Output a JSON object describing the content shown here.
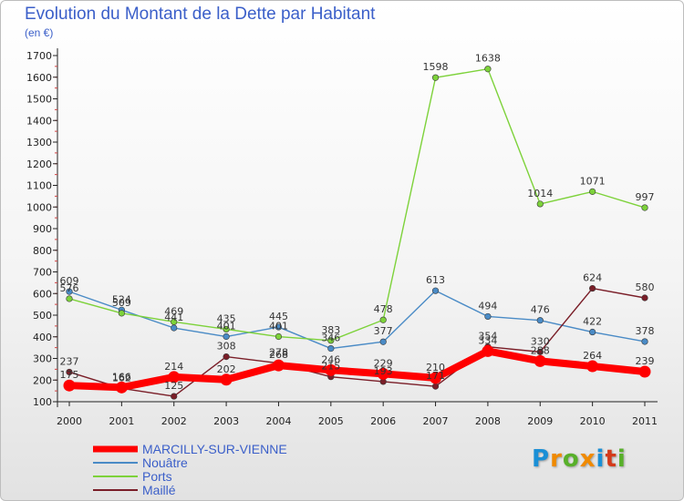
{
  "chart_data": {
    "type": "line",
    "title": "Evolution du Montant de la Dette par Habitant",
    "subtitle": "(en €)",
    "xlabel": "",
    "ylabel": "",
    "categories": [
      "2000",
      "2001",
      "2002",
      "2003",
      "2004",
      "2005",
      "2006",
      "2007",
      "2008",
      "2009",
      "2010",
      "2011"
    ],
    "ylim": [
      100,
      1700
    ],
    "yticks": [
      100,
      200,
      300,
      400,
      500,
      600,
      700,
      800,
      900,
      1000,
      1100,
      1200,
      1300,
      1400,
      1500,
      1600,
      1700
    ],
    "grid": false,
    "legend_position": "bottom-left",
    "series": [
      {
        "name": "MARCILLY-SUR-VIENNE",
        "color": "#ff0000",
        "values": [
          175,
          166,
          214,
          202,
          268,
          246,
          229,
          210,
          334,
          288,
          264,
          239
        ]
      },
      {
        "name": "Nouâtre",
        "color": "#4a8bc6",
        "values": [
          609,
          524,
          441,
          401,
          445,
          346,
          377,
          613,
          494,
          476,
          422,
          378
        ]
      },
      {
        "name": "Ports",
        "color": "#7dd23a",
        "values": [
          576,
          509,
          469,
          435,
          401,
          383,
          478,
          1598,
          1638,
          1014,
          1071,
          997
        ]
      },
      {
        "name": "Maillé",
        "color": "#7a1e28",
        "values": [
          237,
          162,
          125,
          308,
          278,
          215,
          193,
          171,
          354,
          330,
          624,
          580
        ]
      }
    ]
  },
  "brand": {
    "letters": [
      "P",
      "r",
      "o",
      "x",
      "i",
      "t",
      "i"
    ],
    "colors": [
      "#1a8fd6",
      "#f08a00",
      "#58b02a",
      "#f08a00",
      "#1a8fd6",
      "#d43a1a",
      "#58b02a"
    ]
  }
}
